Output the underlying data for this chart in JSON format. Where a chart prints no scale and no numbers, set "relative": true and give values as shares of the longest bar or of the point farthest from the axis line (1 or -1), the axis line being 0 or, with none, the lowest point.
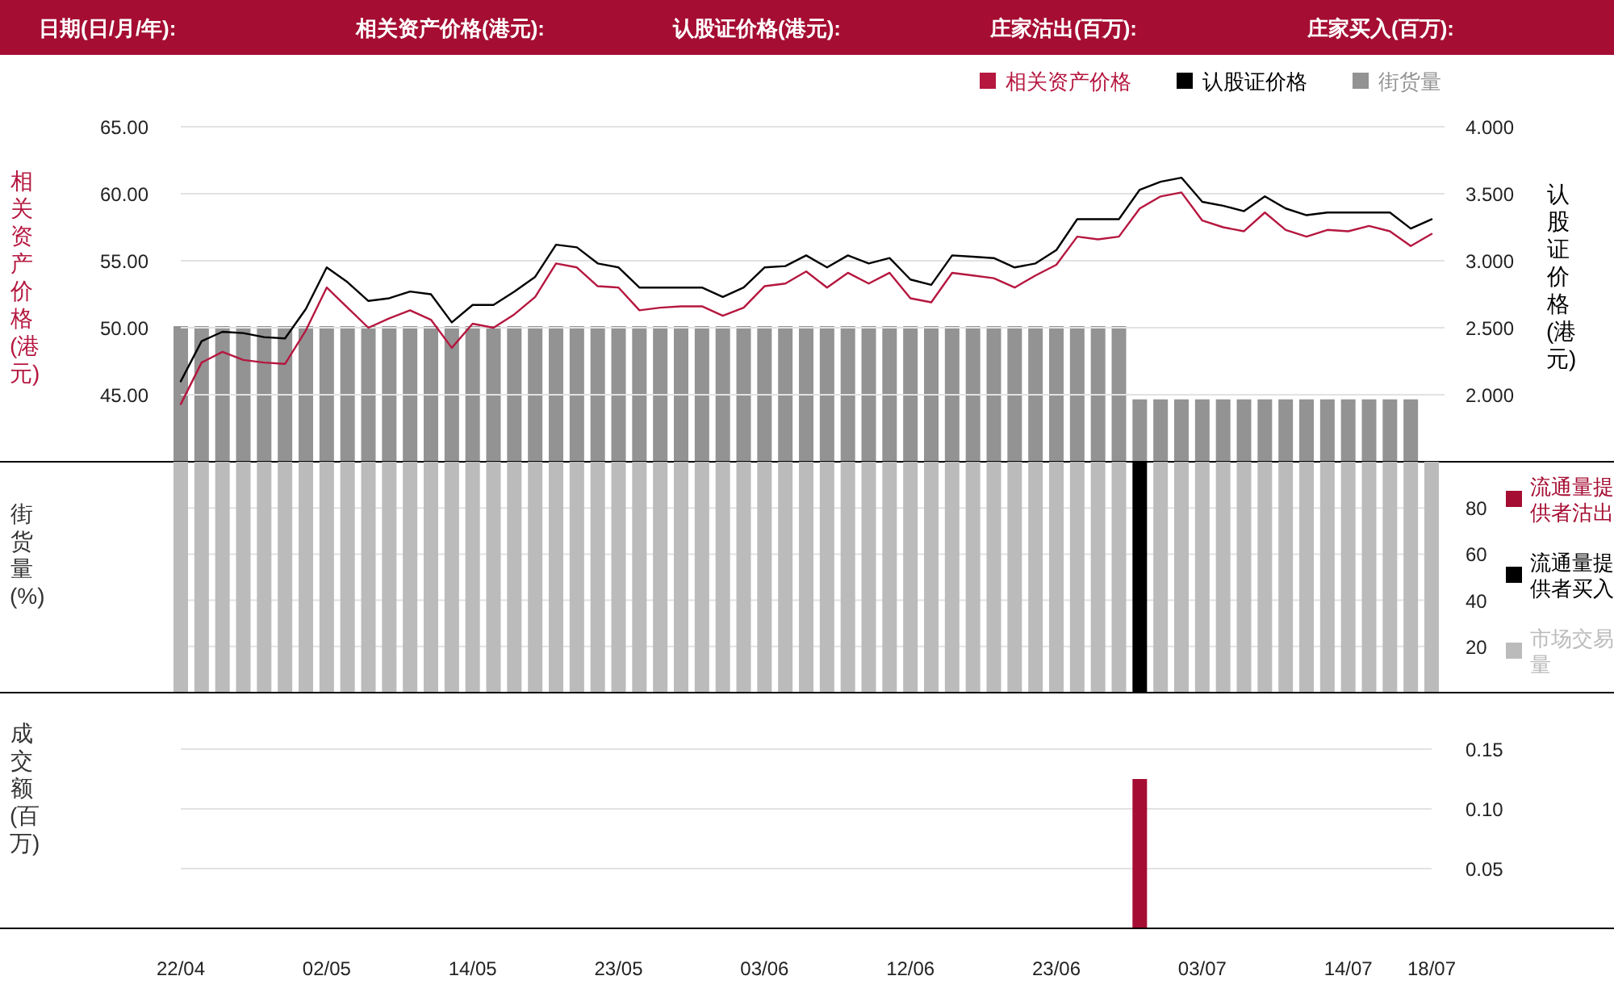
{
  "chart_data": [
    {
      "type": "line",
      "annotations": [
        "日期(日/月/年):",
        "相关资产价格(港元):",
        "认股证价格(港元):",
        "庄家沽出(百万):",
        "庄家买入(百万):"
      ],
      "categories": [
        null,
        null,
        null,
        null,
        null,
        null,
        null,
        null,
        null,
        null,
        null,
        null,
        null,
        null,
        null,
        null,
        null,
        null,
        null,
        null,
        null,
        null,
        null,
        null,
        null,
        null,
        null,
        null,
        null,
        null,
        null,
        null,
        null,
        null,
        null,
        null,
        null,
        null,
        null,
        null,
        null,
        null,
        null,
        null,
        null,
        null,
        null,
        null,
        null,
        null,
        null,
        null,
        null,
        null,
        null,
        null,
        null,
        null,
        null,
        null,
        null
      ],
      "series": [
        {
          "name": "相关资产价格",
          "color": "#b5173f",
          "values": [
            44.3,
            47.4,
            48.2,
            47.6,
            47.4,
            47.3,
            49.8,
            53.0,
            51.5,
            50.0,
            50.7,
            51.3,
            50.6,
            48.5,
            50.3,
            50.0,
            51.0,
            52.3,
            54.8,
            54.5,
            53.1,
            53.0,
            51.3,
            51.5,
            51.6,
            51.6,
            50.9,
            51.5,
            53.1,
            53.3,
            54.2,
            53.0,
            54.1,
            53.3,
            54.1,
            52.2,
            51.9,
            54.1,
            53.9,
            53.7,
            53.0,
            53.9,
            54.7,
            56.8,
            56.6,
            56.8,
            58.9,
            59.8,
            60.1,
            58.0,
            57.5,
            57.2,
            58.6,
            57.3,
            56.8,
            57.3,
            57.2,
            57.6,
            57.2,
            56.1,
            57.0
          ]
        },
        {
          "name": "认股证价格",
          "axis": "y2",
          "color": "#000000",
          "values": [
            2.1,
            2.4,
            2.47,
            2.46,
            2.43,
            2.42,
            2.64,
            2.95,
            2.84,
            2.7,
            2.72,
            2.77,
            2.75,
            2.54,
            2.67,
            2.67,
            2.77,
            2.88,
            3.12,
            3.1,
            2.98,
            2.95,
            2.8,
            2.8,
            2.8,
            2.8,
            2.73,
            2.8,
            2.95,
            2.96,
            3.04,
            2.95,
            3.04,
            2.98,
            3.02,
            2.86,
            2.82,
            3.04,
            3.03,
            3.02,
            2.95,
            2.98,
            3.08,
            3.31,
            3.31,
            3.31,
            3.53,
            3.59,
            3.62,
            3.44,
            3.41,
            3.37,
            3.48,
            3.39,
            3.34,
            3.36,
            3.36,
            3.36,
            3.36,
            3.24,
            3.31
          ]
        }
      ],
      "ylim": [
        40,
        65
      ],
      "yticks": [
        {
          "value": 45,
          "label": "45.00"
        },
        {
          "value": 50,
          "label": "50.00"
        },
        {
          "value": 55,
          "label": "55.00"
        },
        {
          "value": 60,
          "label": "60.00"
        },
        {
          "value": 65,
          "label": "65.00"
        }
      ],
      "y2lim": [
        1.5,
        4
      ],
      "y2ticks": [
        {
          "value": 2,
          "label": "2.000"
        },
        {
          "value": 2.5,
          "label": "2.500"
        },
        {
          "value": 3,
          "label": "3.000"
        },
        {
          "value": 3.5,
          "label": "3.500"
        },
        {
          "value": 4,
          "label": "4.000"
        }
      ],
      "ylabel": "相关资产价格(港元)",
      "y2label": "认股证价格(港元)",
      "legend": "top right",
      "grid": "y",
      "tick_labels": "y"
    },
    {
      "type": "bar",
      "relative": true,
      "tick_labels": false,
      "legend": "top right",
      "categories": [
        null,
        null,
        null,
        null,
        null,
        null,
        null,
        null,
        null,
        null,
        null,
        null,
        null,
        null,
        null,
        null,
        null,
        null,
        null,
        null,
        null,
        null,
        null,
        null,
        null,
        null,
        null,
        null,
        null,
        null,
        null,
        null,
        null,
        null,
        null,
        null,
        null,
        null,
        null,
        null,
        null,
        null,
        null,
        null,
        null,
        null,
        null,
        null,
        null,
        null,
        null,
        null,
        null,
        null,
        null,
        null,
        null,
        null,
        null,
        null,
        null
      ],
      "series": [
        {
          "name": "街货量",
          "color": "#939393",
          "values": [
            1,
            1,
            1,
            1,
            1,
            1,
            1,
            1,
            1,
            1,
            1,
            1,
            1,
            1,
            1,
            1,
            1,
            1,
            1,
            1,
            1,
            1,
            1,
            1,
            1,
            1,
            1,
            1,
            1,
            1,
            1,
            1,
            1,
            1,
            1,
            1,
            1,
            1,
            1,
            1,
            1,
            1,
            1,
            1,
            1,
            1,
            0.46,
            0.46,
            0.46,
            0.46,
            0.46,
            0.46,
            0.46,
            0.46,
            0.46,
            0.46,
            0.46,
            0.46,
            0.46,
            0.46,
            null
          ]
        }
      ]
    },
    {
      "type": "bar",
      "stacked": true,
      "categories": [
        null,
        null,
        null,
        null,
        null,
        null,
        null,
        null,
        null,
        null,
        null,
        null,
        null,
        null,
        null,
        null,
        null,
        null,
        null,
        null,
        null,
        null,
        null,
        null,
        null,
        null,
        null,
        null,
        null,
        null,
        null,
        null,
        null,
        null,
        null,
        null,
        null,
        null,
        null,
        null,
        null,
        null,
        null,
        null,
        null,
        null,
        null,
        null,
        null,
        null,
        null,
        null,
        null,
        null,
        null,
        null,
        null,
        null,
        null,
        null,
        null
      ],
      "series": [
        {
          "name": "流通量提供者沽出",
          "color": "#a50d32",
          "values": [
            0,
            0,
            0,
            0,
            0,
            0,
            0,
            0,
            0,
            0,
            0,
            0,
            0,
            0,
            0,
            0,
            0,
            0,
            0,
            0,
            0,
            0,
            0,
            0,
            0,
            0,
            0,
            0,
            0,
            0,
            0,
            0,
            0,
            0,
            0,
            0,
            0,
            0,
            0,
            0,
            0,
            0,
            0,
            0,
            0,
            0,
            0,
            0,
            0,
            0,
            0,
            0,
            0,
            0,
            0,
            0,
            0,
            0,
            0,
            0,
            0
          ]
        },
        {
          "name": "流通量提供者买入",
          "color": "#000000",
          "values": [
            0,
            0,
            0,
            0,
            0,
            0,
            0,
            0,
            0,
            0,
            0,
            0,
            0,
            0,
            0,
            0,
            0,
            0,
            0,
            0,
            0,
            0,
            0,
            0,
            0,
            0,
            0,
            0,
            0,
            0,
            0,
            0,
            0,
            0,
            0,
            0,
            0,
            0,
            0,
            0,
            0,
            0,
            0,
            0,
            0,
            0,
            100,
            0,
            0,
            0,
            0,
            0,
            0,
            0,
            0,
            0,
            0,
            0,
            0,
            0,
            0
          ]
        },
        {
          "name": "市场交易量",
          "color": "#bbbbbb",
          "values": [
            100,
            100,
            100,
            100,
            100,
            100,
            100,
            100,
            100,
            100,
            100,
            100,
            100,
            100,
            100,
            100,
            100,
            100,
            100,
            100,
            100,
            100,
            100,
            100,
            100,
            100,
            100,
            100,
            100,
            100,
            100,
            100,
            100,
            100,
            100,
            100,
            100,
            100,
            100,
            100,
            100,
            100,
            100,
            100,
            100,
            100,
            0,
            100,
            100,
            100,
            100,
            100,
            100,
            100,
            100,
            100,
            100,
            100,
            100,
            100,
            100
          ]
        }
      ],
      "ylim": [
        0,
        100
      ],
      "yticks": [
        20,
        40,
        60,
        80
      ],
      "ylabel": "街货量(%)",
      "legend": "right",
      "grid": "y",
      "tick_labels": "y"
    },
    {
      "type": "bar",
      "categories": [
        "22/04",
        null,
        null,
        null,
        null,
        null,
        null,
        "02/05",
        null,
        null,
        null,
        null,
        null,
        null,
        "14/05",
        null,
        null,
        null,
        null,
        null,
        null,
        "23/05",
        null,
        null,
        null,
        null,
        null,
        null,
        "03/06",
        null,
        null,
        null,
        null,
        null,
        null,
        "12/06",
        null,
        null,
        null,
        null,
        null,
        null,
        "23/06",
        null,
        null,
        null,
        null,
        null,
        null,
        "03/07",
        null,
        null,
        null,
        null,
        null,
        null,
        "14/07",
        null,
        null,
        null,
        "18/07"
      ],
      "values": [
        0,
        0,
        0,
        0,
        0,
        0,
        0,
        0,
        0,
        0,
        0,
        0,
        0,
        0,
        0,
        0,
        0,
        0,
        0,
        0,
        0,
        0,
        0,
        0,
        0,
        0,
        0,
        0,
        0,
        0,
        0,
        0,
        0,
        0,
        0,
        0,
        0,
        0,
        0,
        0,
        0,
        0,
        0,
        0,
        0,
        0,
        0.125,
        0,
        0,
        0,
        0,
        0,
        0,
        0,
        0,
        0,
        0,
        0,
        0,
        0,
        0
      ],
      "color": "#a50d32",
      "ylim": [
        0,
        0.15
      ],
      "yticks": [
        0.05,
        {
          "value": 0.1,
          "label": "0.10"
        },
        0.15
      ],
      "ylabel": "成交额(百万)",
      "grid": "y"
    }
  ]
}
